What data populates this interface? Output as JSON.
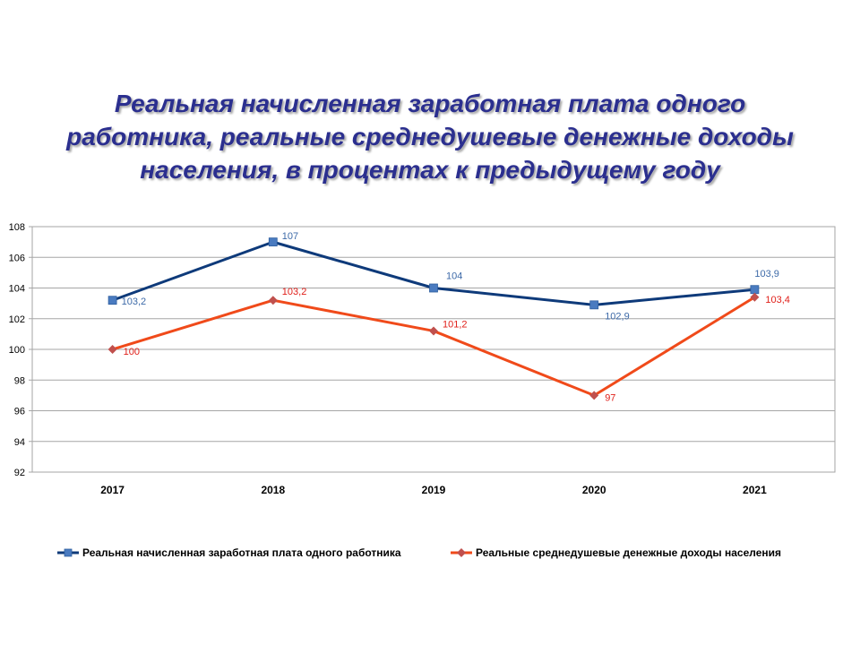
{
  "title": {
    "lines": [
      "Реальная начисленная заработная плата одного",
      "работника, реальные среднедушевые денежные доходы",
      "населения, в процентах к предыдущему году"
    ]
  },
  "chart_data": {
    "type": "line",
    "title": "Реальная начисленная заработная плата одного работника, реальные среднедушевые денежные доходы населения, в процентах к предыдущему году",
    "categories": [
      "2017",
      "2018",
      "2019",
      "2020",
      "2021"
    ],
    "ylim": [
      92,
      108
    ],
    "yticks": [
      92,
      94,
      96,
      98,
      100,
      102,
      104,
      106,
      108
    ],
    "grid": true,
    "legend_position": "bottom",
    "series": [
      {
        "name": "Реальная начисленная заработная плата одного работника",
        "values": [
          103.2,
          107,
          104,
          102.9,
          103.9
        ],
        "labels": [
          "103,2",
          "107",
          "104",
          "102,9",
          "103,9"
        ],
        "color": "#0e3a7a",
        "marker_color": "#4a7bc0",
        "marker": "square",
        "label_color": "#3d6aa8"
      },
      {
        "name": "Реальные среднедушевые денежные доходы населения",
        "values": [
          100,
          103.2,
          101.2,
          97,
          103.4
        ],
        "labels": [
          "100",
          "103,2",
          "101,2",
          "97",
          "103,4"
        ],
        "color": "#f04a1a",
        "marker_color": "#c0504d",
        "marker": "diamond",
        "label_color": "#e0201a"
      }
    ]
  }
}
